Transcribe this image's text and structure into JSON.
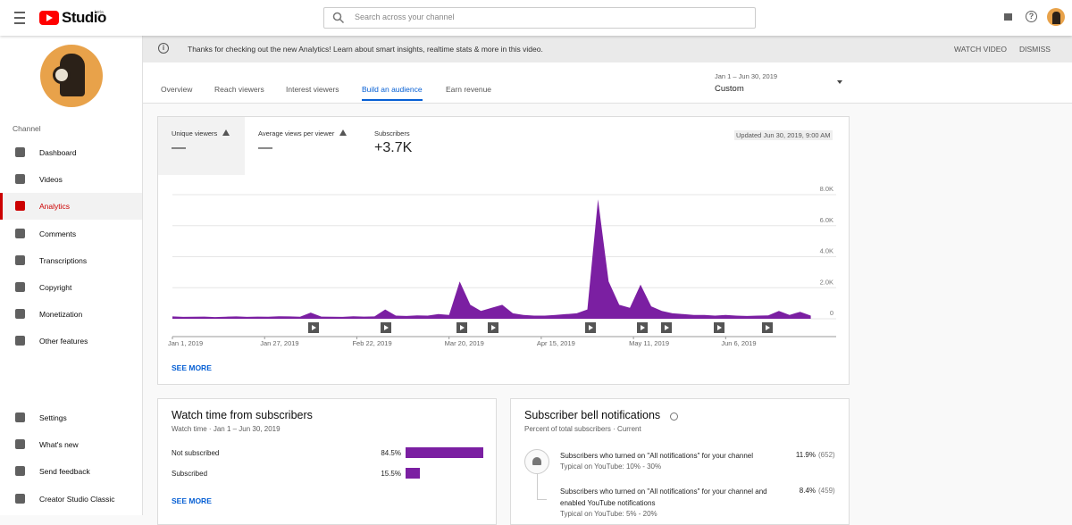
{
  "header": {
    "logo": "Studio",
    "logo_badge": "beta",
    "search_placeholder": "Search across your channel"
  },
  "banner": {
    "text": "Thanks for checking out the new Analytics! Learn about smart insights, realtime stats & more in this video.",
    "actions": [
      "WATCH VIDEO",
      "DISMISS"
    ]
  },
  "sidebar": {
    "section": "Channel",
    "items": [
      "Dashboard",
      "Videos",
      "Analytics",
      "Comments",
      "Transcriptions",
      "Copyright",
      "Monetization",
      "Other features"
    ],
    "active": "Analytics",
    "bottom_items": [
      "Settings",
      "What's new",
      "Send feedback",
      "Creator Studio Classic"
    ]
  },
  "tabs": {
    "items": [
      "Overview",
      "Reach viewers",
      "Interest viewers",
      "Build an audience",
      "Earn revenue"
    ],
    "active": "Build an audience"
  },
  "date_range": {
    "range": "Jan 1 – Jun 30, 2019",
    "preset": "Custom"
  },
  "metrics": [
    {
      "label": "Unique viewers",
      "value": "—"
    },
    {
      "label": "Average views per viewer",
      "value": "—"
    },
    {
      "label": "Subscribers",
      "value": "+3.7K"
    }
  ],
  "updated": "Updated Jun 30, 2019, 9:00 AM",
  "chart": {
    "type": "area",
    "color": "#7b1fa2",
    "x": [
      "2019-01-01",
      "2019-01-04",
      "2019-01-07",
      "2019-01-10",
      "2019-01-13",
      "2019-01-16",
      "2019-01-19",
      "2019-01-22",
      "2019-01-25",
      "2019-01-28",
      "2019-01-31",
      "2019-02-03",
      "2019-02-06",
      "2019-02-09",
      "2019-02-12",
      "2019-02-15",
      "2019-02-18",
      "2019-02-21",
      "2019-02-24",
      "2019-02-27",
      "2019-03-02",
      "2019-03-05",
      "2019-03-08",
      "2019-03-11",
      "2019-03-14",
      "2019-03-17",
      "2019-03-20",
      "2019-03-23",
      "2019-03-26",
      "2019-03-29",
      "2019-04-01",
      "2019-04-04",
      "2019-04-07",
      "2019-04-10",
      "2019-04-13",
      "2019-04-16",
      "2019-04-19",
      "2019-04-22",
      "2019-04-25",
      "2019-04-28",
      "2019-05-01",
      "2019-05-04",
      "2019-05-07",
      "2019-05-10",
      "2019-05-13",
      "2019-05-16",
      "2019-05-19",
      "2019-05-22",
      "2019-05-25",
      "2019-05-28",
      "2019-05-31",
      "2019-06-03",
      "2019-06-06",
      "2019-06-09",
      "2019-06-12",
      "2019-06-15",
      "2019-06-18",
      "2019-06-21",
      "2019-06-24",
      "2019-06-27",
      "2019-06-30"
    ],
    "values": [
      150,
      120,
      130,
      140,
      110,
      130,
      150,
      120,
      140,
      130,
      160,
      150,
      130,
      400,
      140,
      130,
      120,
      160,
      140,
      150,
      600,
      200,
      180,
      220,
      200,
      300,
      250,
      2400,
      900,
      500,
      700,
      900,
      350,
      250,
      200,
      200,
      250,
      300,
      350,
      600,
      7700,
      2400,
      900,
      700,
      2200,
      800,
      500,
      350,
      300,
      250,
      250,
      200,
      250,
      200,
      180,
      200,
      220,
      500,
      250,
      450,
      200
    ],
    "xticks": [
      {
        "value": "2019-01-01",
        "label": "Jan 1, 2019"
      },
      {
        "value": "2019-01-27",
        "label": "Jan 27, 2019"
      },
      {
        "value": "2019-02-22",
        "label": "Feb 22, 2019"
      },
      {
        "value": "2019-03-20",
        "label": "Mar 20, 2019"
      },
      {
        "value": "2019-04-15",
        "label": "Apr 15, 2019"
      },
      {
        "value": "2019-05-11",
        "label": "May 11, 2019"
      },
      {
        "value": "2019-06-06",
        "label": "Jun 6, 2019"
      }
    ],
    "ylim": [
      0,
      8000
    ],
    "yticks": [
      0,
      {
        "value": 2000,
        "label": "2.0K"
      },
      {
        "value": 4000,
        "label": "4.0K"
      },
      {
        "value": 6000,
        "label": "6.0K"
      },
      {
        "value": 8000,
        "label": "8.0K"
      }
    ],
    "grid": true
  },
  "chart_link": "SEE MORE",
  "watch_time": {
    "title": "Watch time from subscribers",
    "subtitle": "Watch time · Jan 1 – Jun 30, 2019",
    "color": "#7b1fa2",
    "categories": [
      "Not subscribed",
      "Subscribed"
    ],
    "values": [
      84.5,
      15.5
    ],
    "value_labels": [
      "84.5%",
      "15.5%"
    ],
    "link": "SEE MORE"
  },
  "bell": {
    "title": "Subscriber bell notifications",
    "subtitle": "Percent of total subscribers · Current",
    "rows": [
      {
        "text": "Subscribers who turned on \"All notifications\" for your channel",
        "typical": "Typical on YouTube: 10% - 30%",
        "value": "11.9%",
        "count": "(652)"
      },
      {
        "text": "Subscribers who turned on \"All notifications\" for your channel and enabled YouTube notifications",
        "typical": "Typical on YouTube: 5% - 20%",
        "value": "8.4%",
        "count": "(459)"
      }
    ]
  }
}
